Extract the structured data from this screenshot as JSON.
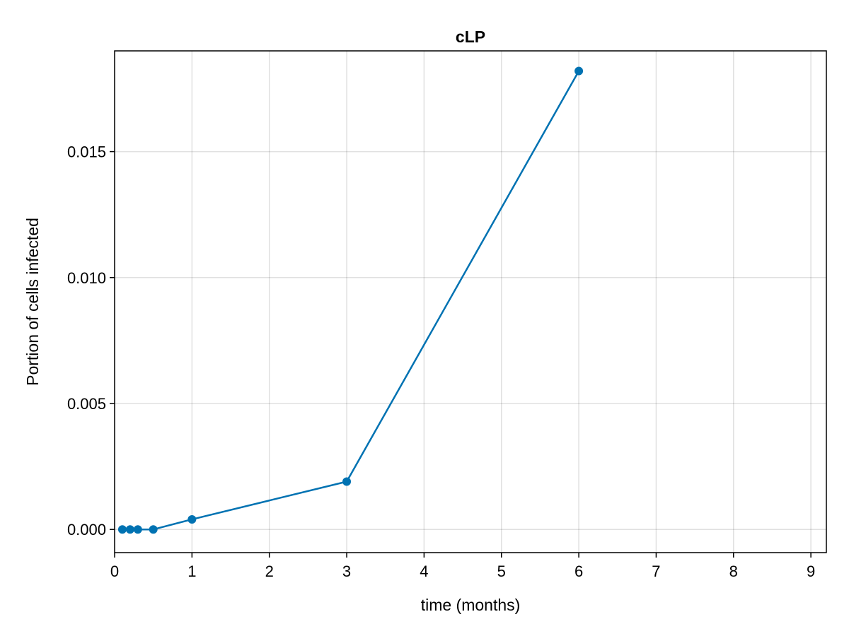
{
  "chart_data": {
    "type": "line",
    "title": "cLP",
    "xlabel": "time (months)",
    "ylabel": "Portion of cells infected",
    "xlim": [
      0,
      9.2
    ],
    "ylim": [
      -0.00092,
      0.019
    ],
    "xticks": [
      0,
      1,
      2,
      3,
      4,
      5,
      6,
      7,
      8,
      9
    ],
    "xtick_labels": [
      "0",
      "1",
      "2",
      "3",
      "4",
      "5",
      "6",
      "7",
      "8",
      "9"
    ],
    "yticks": [
      0.0,
      0.005,
      0.01,
      0.015
    ],
    "ytick_labels": [
      "0.000",
      "0.005",
      "0.010",
      "0.015"
    ],
    "grid": true,
    "series": [
      {
        "color": "#0072b2",
        "x": [
          0.1,
          0.2,
          0.3,
          0.5,
          1,
          3,
          6
        ],
        "y": [
          0.0,
          0.0,
          0.0,
          0.0,
          0.0004,
          0.0019,
          0.0182
        ]
      }
    ]
  }
}
